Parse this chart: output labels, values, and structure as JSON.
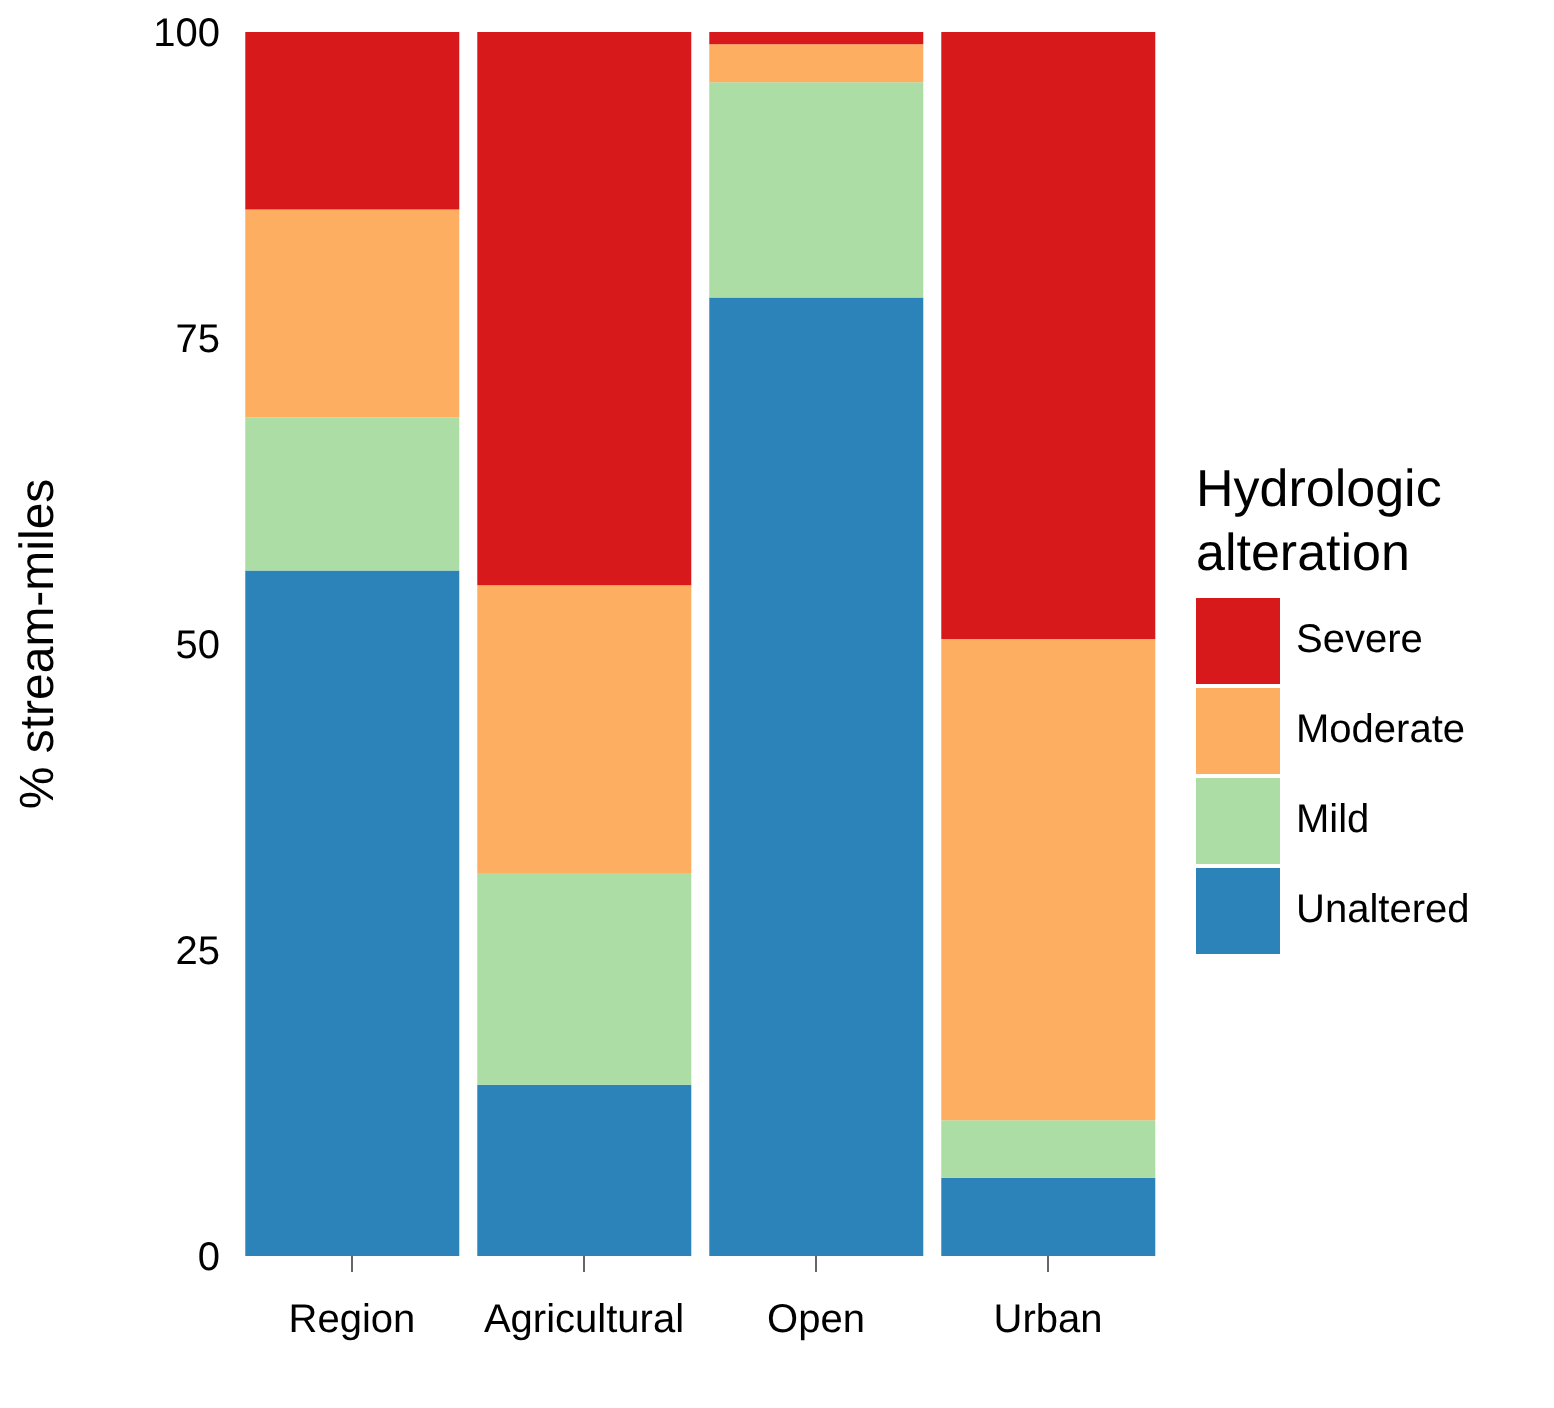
{
  "chart_data": {
    "type": "bar",
    "stacked": true,
    "ylabel": "% stream-miles",
    "legend_title": "Hydrologic alteration",
    "legend": "right",
    "grid": false,
    "categories": [
      "Region",
      "Agricultural",
      "Open",
      "Urban"
    ],
    "ylim": [
      0,
      100
    ],
    "yticks": [
      0,
      25,
      50,
      75,
      100
    ],
    "series": [
      {
        "name": "Unaltered",
        "color": "#2b83ba",
        "values": [
          56,
          14,
          78.3,
          6.4
        ]
      },
      {
        "name": "Mild",
        "color": "#abdda4",
        "values": [
          12.5,
          17.3,
          17.6,
          4.7
        ]
      },
      {
        "name": "Moderate",
        "color": "#fdae61",
        "values": [
          17,
          23.5,
          3.1,
          39.3
        ]
      },
      {
        "name": "Severe",
        "color": "#d7191c",
        "values": [
          14.5,
          45.2,
          1,
          49.6
        ]
      }
    ]
  }
}
